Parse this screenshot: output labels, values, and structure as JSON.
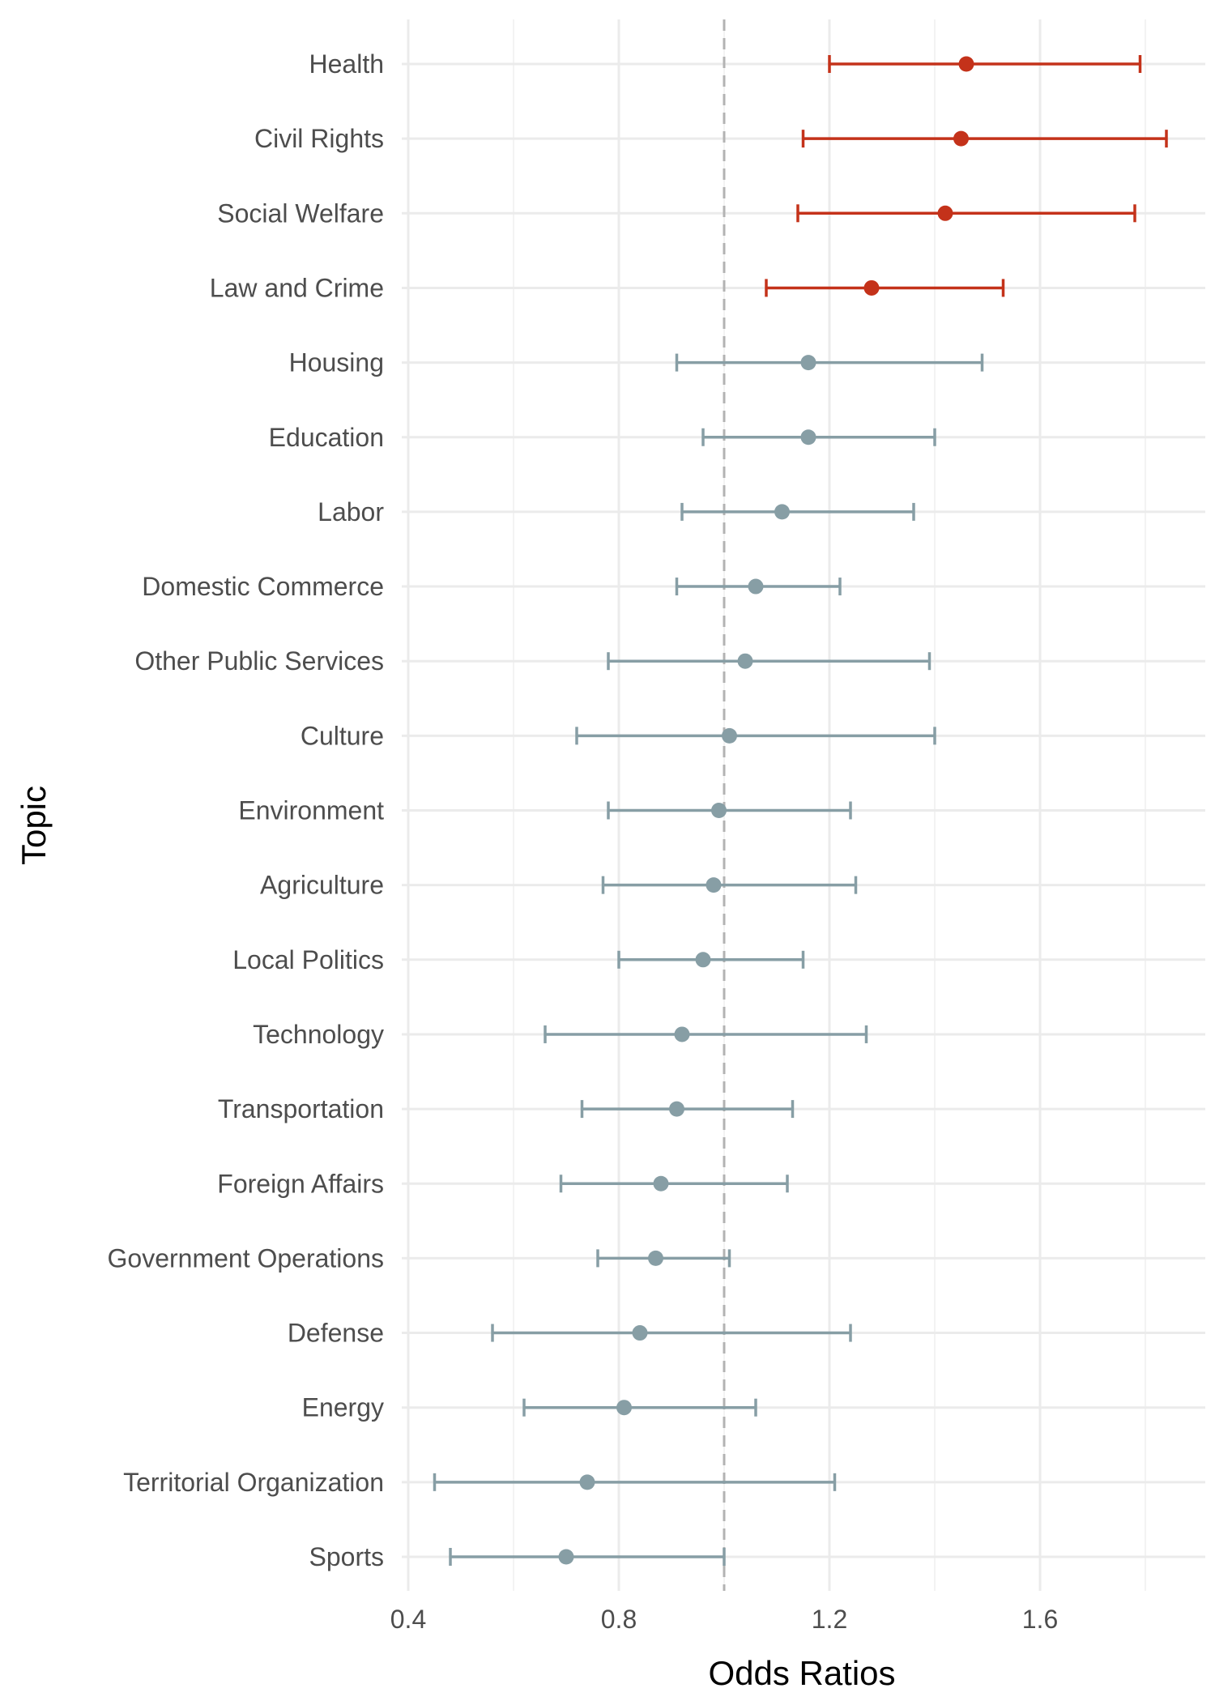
{
  "chart_data": {
    "type": "forest",
    "xlabel": "Odds Ratios",
    "ylabel": "Topic",
    "xlim": [
      0.38,
      1.86
    ],
    "xticks": [
      0.4,
      0.8,
      1.2,
      1.6
    ],
    "xtick_labels": [
      "0.4",
      "0.8",
      "1.2",
      "1.6"
    ],
    "minor_gridlines": [
      0.6,
      1.0,
      1.4,
      1.8
    ],
    "reference_line": 1.0,
    "grid": true,
    "colors": {
      "significant": "#c4321a",
      "not_significant": "#879ea5",
      "reference": "#b3b3b3",
      "grid_major": "#ebebeb",
      "grid_minor": "#f3f3f3"
    },
    "topics": [
      {
        "name": "Health",
        "estimate": 1.46,
        "lower": 1.2,
        "upper": 1.79,
        "significant": true
      },
      {
        "name": "Civil Rights",
        "estimate": 1.45,
        "lower": 1.15,
        "upper": 1.84,
        "significant": true
      },
      {
        "name": "Social Welfare",
        "estimate": 1.42,
        "lower": 1.14,
        "upper": 1.78,
        "significant": true
      },
      {
        "name": "Law and Crime",
        "estimate": 1.28,
        "lower": 1.08,
        "upper": 1.53,
        "significant": true
      },
      {
        "name": "Housing",
        "estimate": 1.16,
        "lower": 0.91,
        "upper": 1.49,
        "significant": false
      },
      {
        "name": "Education",
        "estimate": 1.16,
        "lower": 0.96,
        "upper": 1.4,
        "significant": false
      },
      {
        "name": "Labor",
        "estimate": 1.11,
        "lower": 0.92,
        "upper": 1.36,
        "significant": false
      },
      {
        "name": "Domestic Commerce",
        "estimate": 1.06,
        "lower": 0.91,
        "upper": 1.22,
        "significant": false
      },
      {
        "name": "Other Public Services",
        "estimate": 1.04,
        "lower": 0.78,
        "upper": 1.39,
        "significant": false
      },
      {
        "name": "Culture",
        "estimate": 1.01,
        "lower": 0.72,
        "upper": 1.4,
        "significant": false
      },
      {
        "name": "Environment",
        "estimate": 0.99,
        "lower": 0.78,
        "upper": 1.24,
        "significant": false
      },
      {
        "name": "Agriculture",
        "estimate": 0.98,
        "lower": 0.77,
        "upper": 1.25,
        "significant": false
      },
      {
        "name": "Local Politics",
        "estimate": 0.96,
        "lower": 0.8,
        "upper": 1.15,
        "significant": false
      },
      {
        "name": "Technology",
        "estimate": 0.92,
        "lower": 0.66,
        "upper": 1.27,
        "significant": false
      },
      {
        "name": "Transportation",
        "estimate": 0.91,
        "lower": 0.73,
        "upper": 1.13,
        "significant": false
      },
      {
        "name": "Foreign Affairs",
        "estimate": 0.88,
        "lower": 0.69,
        "upper": 1.12,
        "significant": false
      },
      {
        "name": "Government Operations",
        "estimate": 0.87,
        "lower": 0.76,
        "upper": 1.01,
        "significant": false
      },
      {
        "name": "Defense",
        "estimate": 0.84,
        "lower": 0.56,
        "upper": 1.24,
        "significant": false
      },
      {
        "name": "Energy",
        "estimate": 0.81,
        "lower": 0.62,
        "upper": 1.06,
        "significant": false
      },
      {
        "name": "Territorial Organization",
        "estimate": 0.74,
        "lower": 0.45,
        "upper": 1.21,
        "significant": false
      },
      {
        "name": "Sports",
        "estimate": 0.7,
        "lower": 0.48,
        "upper": 1.0,
        "significant": false
      }
    ]
  }
}
